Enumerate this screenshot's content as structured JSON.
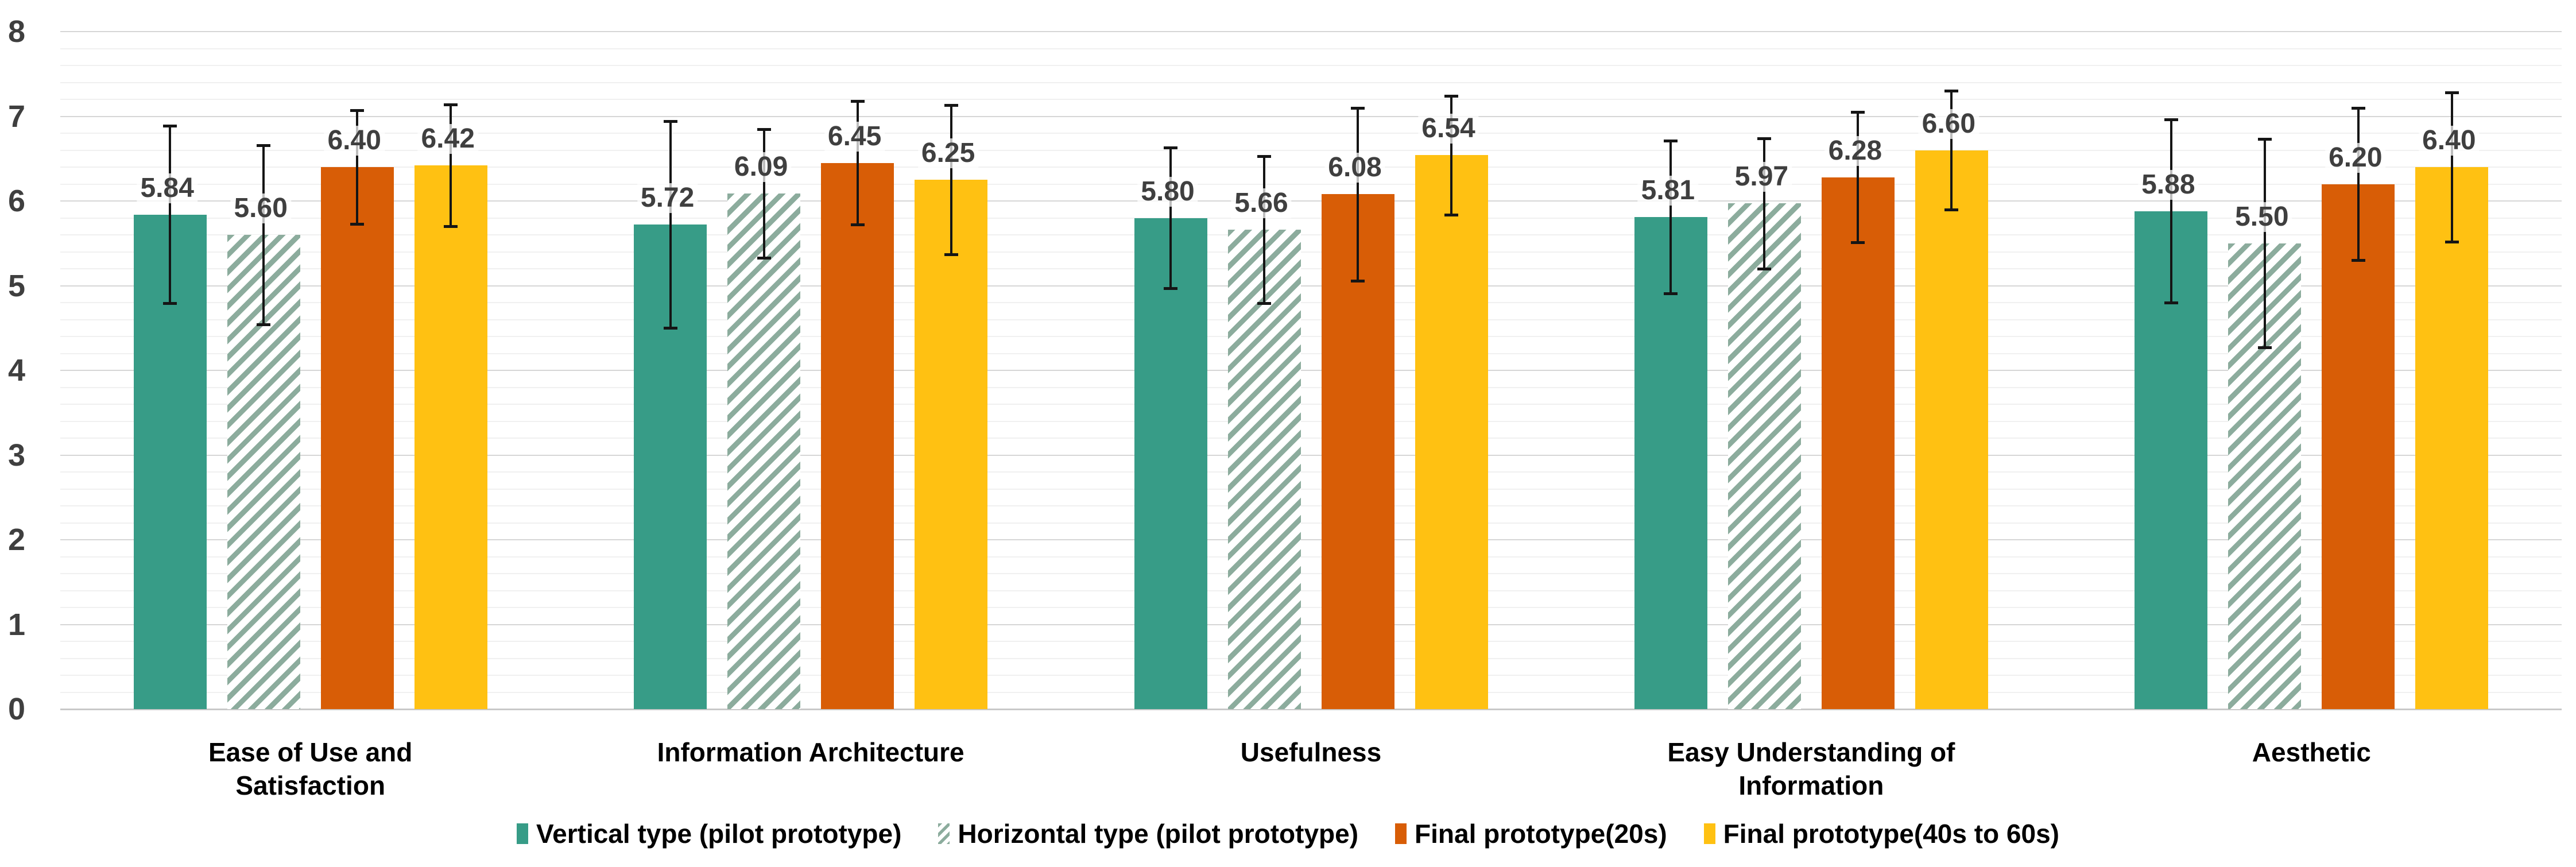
{
  "chart_data": {
    "type": "bar",
    "title": "",
    "xlabel": "",
    "ylabel": "",
    "ylim": [
      0,
      8
    ],
    "ytick_step": 1,
    "yminor_step": 0.2,
    "ytick_labels": [
      "0",
      "1",
      "2",
      "3",
      "4",
      "5",
      "6",
      "7",
      "8"
    ],
    "grid": "horizontal",
    "legend_position": "bottom",
    "error_bars": true,
    "value_label_decimals": 2,
    "categories": [
      "Ease of Use and Satisfaction",
      "Information Architecture",
      "Usefulness",
      "Easy Understanding of Information",
      "Aesthetic"
    ],
    "series": [
      {
        "name": "Vertical type (pilot prototype)",
        "pattern": "solid",
        "color": "#379C87",
        "values": [
          5.84,
          5.72,
          5.8,
          5.81,
          5.88
        ],
        "errors": [
          1.05,
          1.22,
          0.83,
          0.9,
          1.08
        ]
      },
      {
        "name": "Horizontal type (pilot prototype)",
        "pattern": "hatched",
        "color": "#8CAC9D",
        "values": [
          5.6,
          6.09,
          5.66,
          5.97,
          5.5
        ],
        "errors": [
          1.06,
          0.76,
          0.87,
          0.77,
          1.23
        ]
      },
      {
        "name": "Final prototype(20s)",
        "pattern": "solid",
        "color": "#D85D06",
        "values": [
          6.4,
          6.45,
          6.08,
          6.28,
          6.2
        ],
        "errors": [
          0.67,
          0.73,
          1.02,
          0.77,
          0.9
        ]
      },
      {
        "name": "Final prototype(40s to 60s)",
        "pattern": "solid",
        "color": "#FFC112",
        "values": [
          6.42,
          6.25,
          6.54,
          6.6,
          6.4
        ],
        "errors": [
          0.72,
          0.88,
          0.7,
          0.7,
          0.88
        ]
      }
    ],
    "colors": {
      "grid_major": "#D6D6D6",
      "grid_minor": "#F0F0F0",
      "axis_baseline": "#C9C9C9",
      "error_bar": "#151515",
      "tick_label": "#3F3F3F",
      "value_label": "#3F3F3F",
      "category_label": "#000000"
    }
  }
}
